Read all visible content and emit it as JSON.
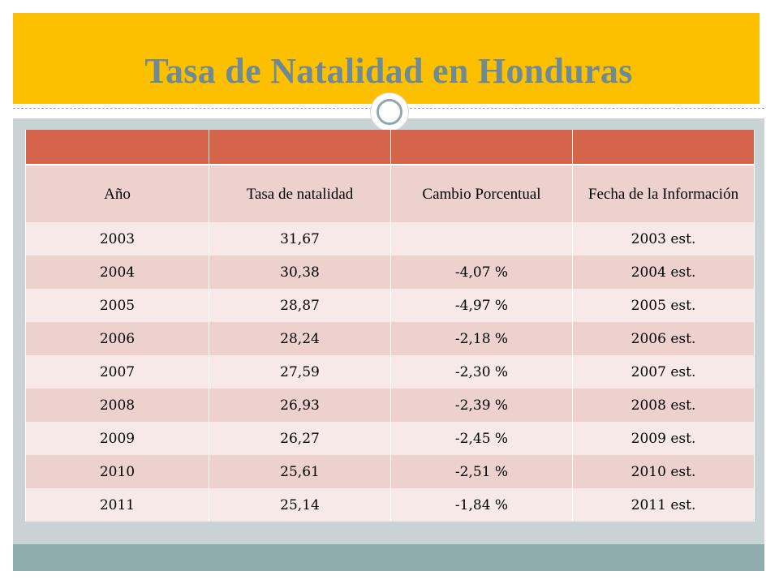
{
  "title": "Tasa de Natalidad en Honduras",
  "table": {
    "header_cells": [
      "",
      "",
      "",
      ""
    ],
    "columns": [
      "Año",
      "Tasa de natalidad",
      "Cambio Porcentual",
      "Fecha de la Información"
    ],
    "rows": [
      [
        "2003",
        "31,67",
        "",
        "2003 est."
      ],
      [
        "2004",
        "30,38",
        "-4,07 %",
        "2004 est."
      ],
      [
        "2005",
        "28,87",
        "-4,97 %",
        "2005 est."
      ],
      [
        "2006",
        "28,24",
        "-2,18 %",
        "2006 est."
      ],
      [
        "2007",
        "27,59",
        "-2,30 %",
        "2007 est."
      ],
      [
        "2008",
        "26,93",
        "-2,39 %",
        "2008 est."
      ],
      [
        "2009",
        "26,27",
        "-2,45 %",
        "2009 est."
      ],
      [
        "2010",
        "25,61",
        "-2,51 %",
        "2010 est."
      ],
      [
        "2011",
        "25,14",
        "-1,84 %",
        "2011 est."
      ]
    ]
  },
  "colors": {
    "title_band": "#fcc000",
    "title_text": "#6e8a94",
    "table_header": "#d4654a",
    "row_dark": "#edd1cc",
    "row_light": "#f6e9e7",
    "frame": "#c9d3d6",
    "bottom_band": "#8fadad"
  }
}
